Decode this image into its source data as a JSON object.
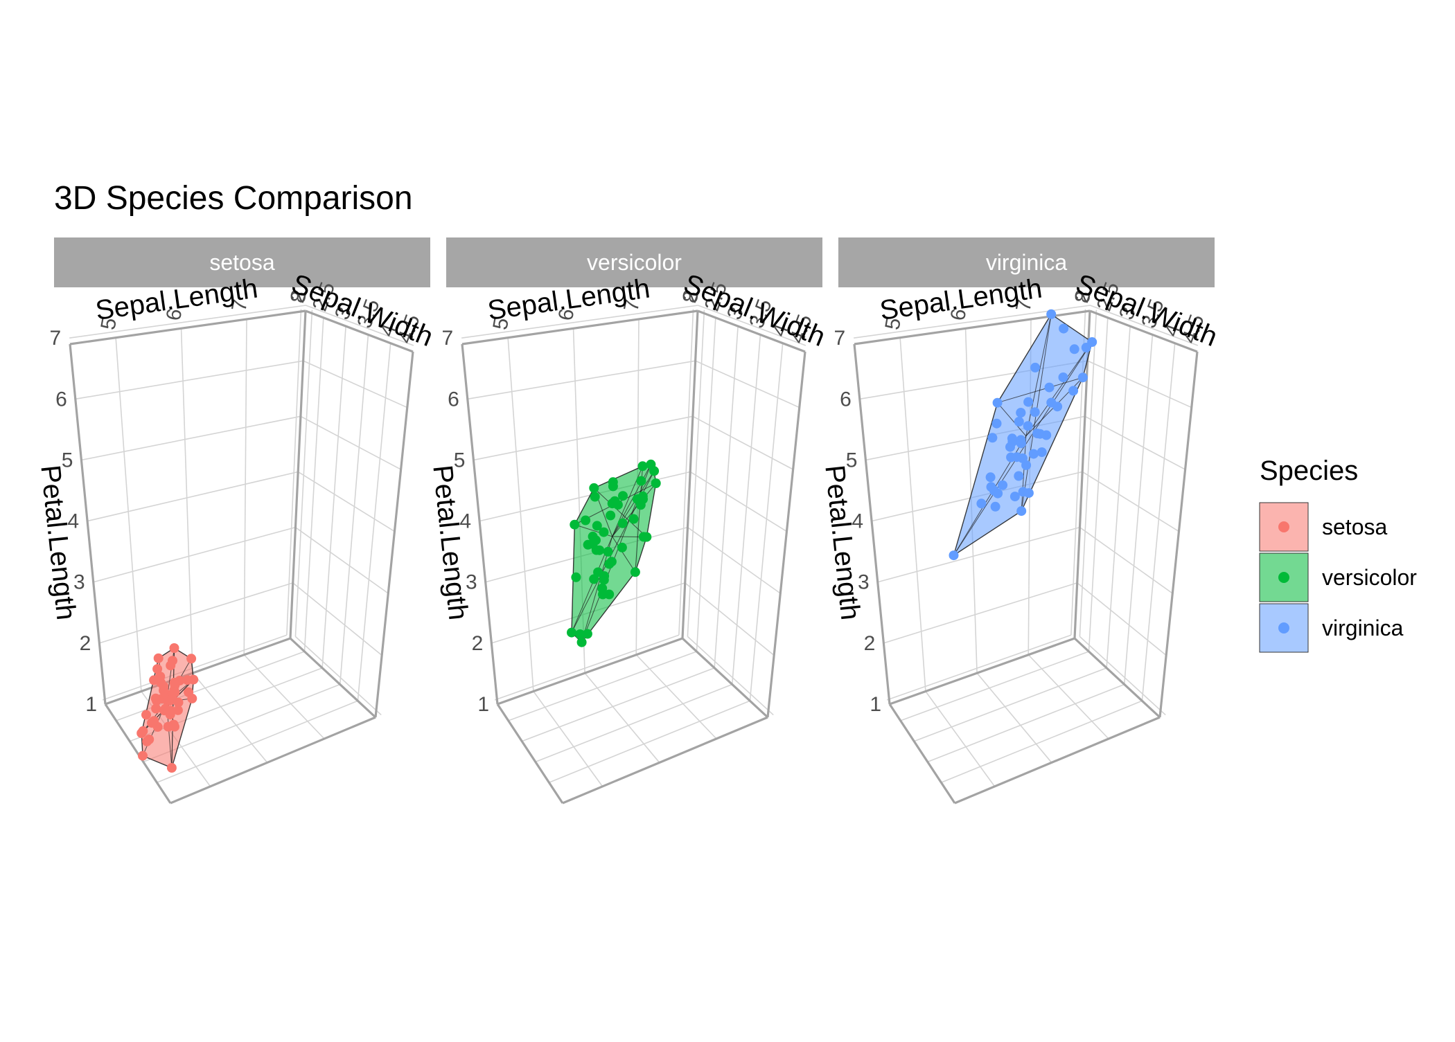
{
  "chart_data": {
    "type": "scatter",
    "title": "3D Species Comparison",
    "axes": {
      "x": {
        "label": "Sepal.Length",
        "range": [
          4.3,
          7.9
        ],
        "ticks": [
          5,
          6,
          7,
          8
        ]
      },
      "y": {
        "label": "Sepal.Width",
        "range": [
          2.0,
          4.4
        ],
        "ticks": [
          2,
          2.5,
          3,
          3.5,
          4,
          4.5
        ]
      },
      "z": {
        "label": "Petal.Length",
        "range": [
          1.0,
          6.9
        ],
        "ticks": [
          1,
          2,
          3,
          4,
          5,
          6,
          7
        ]
      }
    },
    "grid": true,
    "legend": {
      "title": "Species",
      "position": "right",
      "entries": [
        {
          "label": "setosa",
          "color": "#F8766D"
        },
        {
          "label": "versicolor",
          "color": "#00BA38"
        },
        {
          "label": "virginica",
          "color": "#619CFF"
        }
      ]
    },
    "facets": [
      {
        "label": "setosa",
        "color": "#F8766D",
        "points": [
          [
            5.1,
            3.5,
            1.4
          ],
          [
            4.9,
            3.0,
            1.4
          ],
          [
            4.7,
            3.2,
            1.3
          ],
          [
            4.6,
            3.1,
            1.5
          ],
          [
            5.0,
            3.6,
            1.4
          ],
          [
            5.4,
            3.9,
            1.7
          ],
          [
            4.6,
            3.4,
            1.4
          ],
          [
            5.0,
            3.4,
            1.5
          ],
          [
            4.4,
            2.9,
            1.4
          ],
          [
            4.9,
            3.1,
            1.5
          ],
          [
            5.4,
            3.7,
            1.5
          ],
          [
            4.8,
            3.4,
            1.6
          ],
          [
            4.8,
            3.0,
            1.4
          ],
          [
            4.3,
            3.0,
            1.1
          ],
          [
            5.8,
            4.0,
            1.2
          ],
          [
            5.7,
            4.4,
            1.5
          ],
          [
            5.4,
            3.9,
            1.3
          ],
          [
            5.1,
            3.5,
            1.4
          ],
          [
            5.7,
            3.8,
            1.7
          ],
          [
            5.1,
            3.8,
            1.5
          ],
          [
            5.4,
            3.4,
            1.7
          ],
          [
            5.1,
            3.7,
            1.5
          ],
          [
            4.6,
            3.6,
            1.0
          ],
          [
            5.1,
            3.3,
            1.7
          ],
          [
            4.8,
            3.4,
            1.9
          ],
          [
            5.0,
            3.0,
            1.6
          ],
          [
            5.0,
            3.4,
            1.6
          ],
          [
            5.2,
            3.5,
            1.5
          ],
          [
            5.2,
            3.4,
            1.4
          ],
          [
            4.7,
            3.2,
            1.6
          ],
          [
            4.8,
            3.1,
            1.6
          ],
          [
            5.4,
            3.4,
            1.5
          ],
          [
            5.2,
            4.1,
            1.5
          ],
          [
            5.5,
            4.2,
            1.4
          ],
          [
            4.9,
            3.1,
            1.5
          ],
          [
            5.0,
            3.2,
            1.2
          ],
          [
            5.5,
            3.5,
            1.3
          ],
          [
            4.9,
            3.6,
            1.4
          ],
          [
            4.4,
            3.0,
            1.3
          ],
          [
            5.1,
            3.4,
            1.5
          ],
          [
            5.0,
            3.5,
            1.3
          ],
          [
            4.5,
            2.3,
            1.3
          ],
          [
            4.4,
            3.2,
            1.3
          ],
          [
            5.0,
            3.5,
            1.6
          ],
          [
            5.1,
            3.8,
            1.9
          ],
          [
            4.8,
            3.0,
            1.4
          ],
          [
            5.1,
            3.8,
            1.6
          ],
          [
            4.6,
            3.2,
            1.4
          ],
          [
            5.3,
            3.7,
            1.5
          ],
          [
            5.0,
            3.3,
            1.4
          ]
        ]
      },
      {
        "label": "versicolor",
        "color": "#00BA38",
        "points": [
          [
            7.0,
            3.2,
            4.7
          ],
          [
            6.4,
            3.2,
            4.5
          ],
          [
            6.9,
            3.1,
            4.9
          ],
          [
            5.5,
            2.3,
            4.0
          ],
          [
            6.5,
            2.8,
            4.6
          ],
          [
            5.7,
            2.8,
            4.5
          ],
          [
            6.3,
            3.3,
            4.7
          ],
          [
            4.9,
            2.4,
            3.3
          ],
          [
            6.6,
            2.9,
            4.6
          ],
          [
            5.2,
            2.7,
            3.9
          ],
          [
            5.0,
            2.0,
            3.5
          ],
          [
            5.9,
            3.0,
            4.2
          ],
          [
            6.0,
            2.2,
            4.0
          ],
          [
            6.1,
            2.9,
            4.7
          ],
          [
            5.6,
            2.9,
            3.6
          ],
          [
            6.7,
            3.1,
            4.4
          ],
          [
            5.6,
            3.0,
            4.5
          ],
          [
            5.8,
            2.7,
            4.1
          ],
          [
            6.2,
            2.2,
            4.5
          ],
          [
            5.6,
            2.5,
            3.9
          ],
          [
            5.9,
            3.2,
            4.8
          ],
          [
            6.1,
            2.8,
            4.0
          ],
          [
            6.3,
            2.5,
            4.9
          ],
          [
            6.1,
            2.8,
            4.7
          ],
          [
            6.4,
            2.9,
            4.3
          ],
          [
            6.6,
            3.0,
            4.4
          ],
          [
            6.8,
            2.8,
            4.8
          ],
          [
            6.7,
            3.0,
            5.0
          ],
          [
            6.0,
            2.9,
            4.5
          ],
          [
            5.7,
            2.6,
            3.5
          ],
          [
            5.5,
            2.4,
            3.8
          ],
          [
            5.5,
            2.4,
            3.7
          ],
          [
            5.8,
            2.7,
            3.9
          ],
          [
            6.0,
            2.7,
            5.1
          ],
          [
            5.4,
            3.0,
            4.5
          ],
          [
            6.0,
            3.4,
            4.5
          ],
          [
            6.7,
            3.1,
            4.7
          ],
          [
            6.3,
            2.3,
            4.4
          ],
          [
            5.6,
            3.0,
            4.1
          ],
          [
            5.5,
            2.5,
            4.0
          ],
          [
            5.5,
            2.6,
            4.4
          ],
          [
            6.1,
            3.0,
            4.6
          ],
          [
            5.8,
            2.6,
            4.0
          ],
          [
            5.0,
            2.3,
            3.3
          ],
          [
            5.6,
            2.7,
            4.2
          ],
          [
            5.7,
            3.0,
            4.2
          ],
          [
            5.7,
            2.9,
            4.2
          ],
          [
            6.2,
            2.9,
            4.3
          ],
          [
            5.1,
            2.5,
            3.0
          ],
          [
            5.7,
            2.8,
            4.1
          ]
        ]
      },
      {
        "label": "virginica",
        "color": "#619CFF",
        "points": [
          [
            6.3,
            3.3,
            6.0
          ],
          [
            5.8,
            2.7,
            5.1
          ],
          [
            7.1,
            3.0,
            5.9
          ],
          [
            6.3,
            2.9,
            5.6
          ],
          [
            6.5,
            3.0,
            5.8
          ],
          [
            7.6,
            3.0,
            6.6
          ],
          [
            4.9,
            2.5,
            4.5
          ],
          [
            7.3,
            2.9,
            6.3
          ],
          [
            6.7,
            2.5,
            5.8
          ],
          [
            7.2,
            3.6,
            6.1
          ],
          [
            6.5,
            3.2,
            5.1
          ],
          [
            6.4,
            2.7,
            5.3
          ],
          [
            6.8,
            3.0,
            5.5
          ],
          [
            5.7,
            2.5,
            5.0
          ],
          [
            5.8,
            2.8,
            5.1
          ],
          [
            6.4,
            3.2,
            5.3
          ],
          [
            6.5,
            3.0,
            5.5
          ],
          [
            7.7,
            3.8,
            6.7
          ],
          [
            7.7,
            2.6,
            6.9
          ],
          [
            6.0,
            2.2,
            5.0
          ],
          [
            6.9,
            3.2,
            5.7
          ],
          [
            5.6,
            2.8,
            4.9
          ],
          [
            7.7,
            2.8,
            6.7
          ],
          [
            6.3,
            2.7,
            4.9
          ],
          [
            6.7,
            3.3,
            5.7
          ],
          [
            7.2,
            3.2,
            6.0
          ],
          [
            6.2,
            2.8,
            4.8
          ],
          [
            6.1,
            3.0,
            4.9
          ],
          [
            6.4,
            2.8,
            5.6
          ],
          [
            7.2,
            3.0,
            5.8
          ],
          [
            7.4,
            2.8,
            6.1
          ],
          [
            7.9,
            3.8,
            6.4
          ],
          [
            6.4,
            2.8,
            5.6
          ],
          [
            6.3,
            2.8,
            5.1
          ],
          [
            6.1,
            2.6,
            5.6
          ],
          [
            7.7,
            3.0,
            6.1
          ],
          [
            6.3,
            3.4,
            5.6
          ],
          [
            6.4,
            3.1,
            5.5
          ],
          [
            6.0,
            3.0,
            4.8
          ],
          [
            6.9,
            3.1,
            5.4
          ],
          [
            6.7,
            3.1,
            5.6
          ],
          [
            6.9,
            3.1,
            5.1
          ],
          [
            5.8,
            2.7,
            5.1
          ],
          [
            6.8,
            3.2,
            5.9
          ],
          [
            6.7,
            3.3,
            5.7
          ],
          [
            6.7,
            3.0,
            5.2
          ],
          [
            6.3,
            2.5,
            5.0
          ],
          [
            6.5,
            3.0,
            5.2
          ],
          [
            6.2,
            3.4,
            5.4
          ],
          [
            5.9,
            3.0,
            5.1
          ]
        ]
      }
    ]
  }
}
